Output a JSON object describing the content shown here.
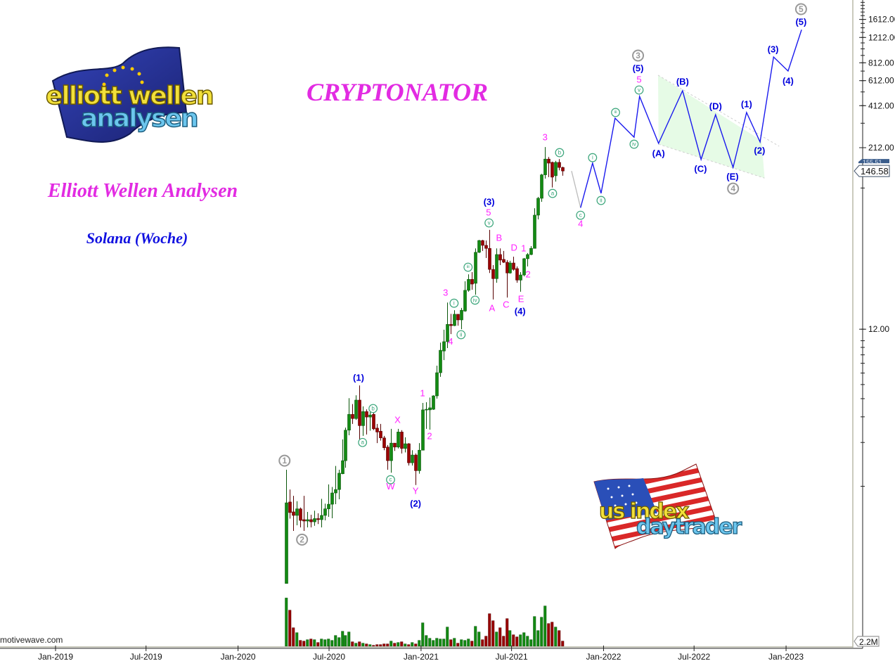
{
  "header": {
    "title": "CRYPTONATOR",
    "subtitle": "Elliott Wellen Analysen",
    "symbol": "Solana (Woche)",
    "watermark": "motivewave.com"
  },
  "logos": {
    "top_left": {
      "line1": "elliott wellen",
      "line2": "analysen"
    },
    "bottom_right": {
      "line1": "us index",
      "line2": "daytrader"
    }
  },
  "colors": {
    "up": "#138a13",
    "down": "#9a0000",
    "projection": "#1a1aee",
    "projection_start": "#bbbbbb",
    "magenta": "#ff22ff",
    "blue_label": "#0000dd",
    "green_circle": "#3aa57a",
    "gray_circle": "#999999",
    "triangle_fill": "#e6fbe6"
  },
  "chart_data": {
    "type": "candlestick",
    "interval": "weekly",
    "y_scale": "log",
    "grid": false,
    "y_ticks": [
      {
        "value": 1612,
        "label": "1612.00"
      },
      {
        "value": 1212,
        "label": "1212.00"
      },
      {
        "value": 812,
        "label": "812.00"
      },
      {
        "value": 612,
        "label": "612.00"
      },
      {
        "value": 412,
        "label": "412.00"
      },
      {
        "value": 212,
        "label": "212.00"
      },
      {
        "value": 12,
        "label": "12.00"
      }
    ],
    "x_ticks": [
      {
        "date": "2019-01-01",
        "label": "Jan-2019"
      },
      {
        "date": "2019-07-01",
        "label": "Jul-2019"
      },
      {
        "date": "2020-01-01",
        "label": "Jan-2020"
      },
      {
        "date": "2020-07-01",
        "label": "Jul-2020"
      },
      {
        "date": "2021-01-01",
        "label": "Jan-2021"
      },
      {
        "date": "2021-07-01",
        "label": "Jul-2021"
      },
      {
        "date": "2022-01-01",
        "label": "Jan-2022"
      },
      {
        "date": "2022-07-01",
        "label": "Jul-2022"
      },
      {
        "date": "2023-01-01",
        "label": "Jan-2023"
      }
    ],
    "last_price_label": "146.58",
    "last_price_hidden_label": "155.51",
    "volume_label": "2.2M",
    "volume_unit": "M",
    "candles_columns": [
      "date",
      "open",
      "high",
      "low",
      "close",
      "volume"
    ],
    "candles": [
      [
        "2020-04-06",
        0.215,
        1.3,
        0.215,
        0.77,
        20.6
      ],
      [
        "2020-04-13",
        0.78,
        0.95,
        0.6,
        0.66,
        15.4
      ],
      [
        "2020-04-20",
        0.667,
        0.86,
        0.494,
        0.631,
        7.9
      ],
      [
        "2020-04-27",
        0.631,
        0.79,
        0.54,
        0.7,
        5.8
      ],
      [
        "2020-05-04",
        0.7,
        0.715,
        0.522,
        0.583,
        2.5
      ],
      [
        "2020-05-11",
        0.59,
        0.86,
        0.494,
        0.577,
        2.2
      ],
      [
        "2020-05-18",
        0.577,
        0.667,
        0.522,
        0.59,
        2.8
      ],
      [
        "2020-05-25",
        0.59,
        0.638,
        0.522,
        0.57,
        3.1
      ],
      [
        "2020-06-01",
        0.57,
        0.68,
        0.535,
        0.6,
        2.8
      ],
      [
        "2020-06-08",
        0.6,
        0.652,
        0.55,
        0.59,
        1.6
      ],
      [
        "2020-06-15",
        0.59,
        0.82,
        0.522,
        0.631,
        3.1
      ],
      [
        "2020-06-22",
        0.631,
        0.76,
        0.583,
        0.7,
        2.8
      ],
      [
        "2020-06-29",
        0.7,
        1.03,
        0.617,
        0.753,
        3.1
      ],
      [
        "2020-07-06",
        0.753,
        0.99,
        0.603,
        0.9,
        2.5
      ],
      [
        "2020-07-13",
        0.9,
        1.38,
        0.753,
        0.95,
        4.6
      ],
      [
        "2020-07-20",
        0.95,
        1.3,
        0.814,
        1.23,
        3.7
      ],
      [
        "2020-07-27",
        1.22,
        2.1,
        1.21,
        1.5,
        6.4
      ],
      [
        "2020-08-03",
        1.5,
        2.53,
        1.34,
        2.43,
        4.6
      ],
      [
        "2020-08-10",
        2.43,
        4.03,
        2.24,
        3.12,
        6.1
      ],
      [
        "2020-08-17",
        3.12,
        3.67,
        2.68,
        2.92,
        1.9
      ],
      [
        "2020-08-24",
        2.92,
        4.22,
        2.86,
        3.91,
        1.3
      ],
      [
        "2020-08-31",
        3.91,
        4.93,
        2.06,
        2.61,
        1.9
      ],
      [
        "2020-09-07",
        2.61,
        3.54,
        2.22,
        3.26,
        1.3
      ],
      [
        "2020-09-14",
        3.26,
        3.38,
        2.27,
        2.99,
        1.0
      ],
      [
        "2020-09-21",
        2.99,
        3.23,
        2.41,
        3.09,
        0.7
      ],
      [
        "2020-09-28",
        3.12,
        3.46,
        2.43,
        2.48,
        0.4
      ],
      [
        "2020-10-05",
        2.51,
        2.68,
        1.98,
        2.36,
        0.7
      ],
      [
        "2020-10-12",
        2.39,
        2.68,
        2.06,
        2.15,
        0.7
      ],
      [
        "2020-10-19",
        2.15,
        2.22,
        1.77,
        1.84,
        1.0
      ],
      [
        "2020-10-26",
        1.86,
        1.92,
        1.3,
        1.5,
        1.0
      ],
      [
        "2020-11-02",
        1.5,
        2.48,
        1.24,
        1.98,
        2.2
      ],
      [
        "2020-11-09",
        1.98,
        1.98,
        1.75,
        1.86,
        1.3
      ],
      [
        "2020-11-16",
        1.86,
        2.48,
        1.82,
        2.36,
        1.6
      ],
      [
        "2020-11-23",
        2.36,
        2.43,
        1.68,
        1.82,
        1.9
      ],
      [
        "2020-11-30",
        1.82,
        2.17,
        1.71,
        1.96,
        1.0
      ],
      [
        "2020-12-07",
        1.96,
        1.98,
        1.39,
        1.45,
        0.7
      ],
      [
        "2020-12-14",
        1.45,
        1.77,
        1.39,
        1.64,
        1.6
      ],
      [
        "2020-12-21",
        1.64,
        1.68,
        1.02,
        1.28,
        1.0
      ],
      [
        "2020-12-28",
        1.28,
        1.98,
        1.22,
        1.77,
        2.5
      ],
      [
        "2021-01-04",
        1.77,
        3.74,
        1.77,
        3.35,
        10.0
      ],
      [
        "2021-01-11",
        3.35,
        3.78,
        2.48,
        3.38,
        4.6
      ],
      [
        "2021-01-18",
        3.35,
        4.07,
        2.45,
        3.46,
        3.4
      ],
      [
        "2021-01-25",
        3.38,
        4.22,
        3.35,
        4.18,
        2.5
      ],
      [
        "2021-02-01",
        4.18,
        6.74,
        4.0,
        6.03,
        3.4
      ],
      [
        "2021-02-08",
        6.03,
        9.7,
        5.65,
        8.6,
        3.1
      ],
      [
        "2021-02-15",
        8.5,
        11.9,
        7.36,
        9.85,
        3.1
      ],
      [
        "2021-02-22",
        9.85,
        18.3,
        8.9,
        12.95,
        8.2
      ],
      [
        "2021-03-01",
        12.95,
        15.3,
        11.1,
        12.7,
        2.8
      ],
      [
        "2021-03-08",
        12.7,
        16.2,
        12.6,
        15.2,
        3.4
      ],
      [
        "2021-03-15",
        15.2,
        15.2,
        12.7,
        13.9,
        1.3
      ],
      [
        "2021-03-22",
        13.9,
        16.8,
        12.0,
        16.2,
        2.8
      ],
      [
        "2021-03-29",
        16.0,
        25.6,
        15.8,
        22.2,
        2.5
      ],
      [
        "2021-04-05",
        22.2,
        28.6,
        21.7,
        26.4,
        3.1
      ],
      [
        "2021-04-12",
        26.4,
        29.6,
        22.4,
        24.5,
        2.2
      ],
      [
        "2021-04-19",
        24.8,
        43.1,
        20.7,
        40.5,
        8.5
      ],
      [
        "2021-04-26",
        40.5,
        49.3,
        40.0,
        48.8,
        6.1
      ],
      [
        "2021-05-03",
        48.8,
        49.3,
        41.4,
        45.2,
        2.8
      ],
      [
        "2021-05-10",
        45.2,
        48.8,
        37.0,
        43.1,
        4.3
      ],
      [
        "2021-05-17",
        43.1,
        57.8,
        29.2,
        30.9,
        13.9
      ],
      [
        "2021-05-24",
        30.9,
        33.1,
        19.2,
        26.7,
        10.9
      ],
      [
        "2021-05-31",
        26.7,
        43.1,
        25.0,
        39.1,
        6.1
      ],
      [
        "2021-06-07",
        39.1,
        43.1,
        33.1,
        35.8,
        7.9
      ],
      [
        "2021-06-14",
        36.2,
        41.4,
        34.2,
        34.6,
        4.3
      ],
      [
        "2021-06-21",
        34.6,
        35.8,
        19.8,
        29.2,
        11.8
      ],
      [
        "2021-06-28",
        29.2,
        35.4,
        28.9,
        34.2,
        6.7
      ],
      [
        "2021-07-05",
        34.2,
        37.8,
        30.3,
        30.9,
        4.9
      ],
      [
        "2021-07-12",
        31.3,
        32.4,
        25.0,
        26.1,
        4.0
      ],
      [
        "2021-07-19",
        26.1,
        29.6,
        21.7,
        28.3,
        4.9
      ],
      [
        "2021-07-26",
        28.3,
        37.0,
        27.7,
        36.6,
        5.8
      ],
      [
        "2021-08-02",
        36.6,
        40.0,
        32.4,
        39.1,
        4.3
      ],
      [
        "2021-08-09",
        39.1,
        44.7,
        38.7,
        43.1,
        2.8
      ],
      [
        "2021-08-16",
        43.1,
        81.3,
        43.1,
        72.9,
        12.7
      ],
      [
        "2021-08-23",
        72.9,
        97.3,
        68.2,
        95.2,
        6.7
      ],
      [
        "2021-08-30",
        95.2,
        140,
        90,
        138,
        12.4
      ],
      [
        "2021-09-06",
        138,
        214,
        130,
        177,
        17.2
      ],
      [
        "2021-09-13",
        177,
        183,
        133,
        166,
        9.7
      ],
      [
        "2021-09-20",
        168,
        170,
        113,
        133,
        10.3
      ],
      [
        "2021-09-27",
        136,
        172,
        124,
        168,
        8.2
      ],
      [
        "2021-10-04",
        168,
        177,
        148,
        155,
        6.7
      ],
      [
        "2021-10-11",
        155,
        157,
        136,
        146.58,
        2.2
      ]
    ],
    "projection": [
      [
        "2021-10-29",
        146.6
      ],
      [
        "2021-11-16",
        82
      ],
      [
        "2021-12-10",
        166
      ],
      [
        "2021-12-27",
        103
      ],
      [
        "2022-01-24",
        338
      ],
      [
        "2022-03-03",
        250
      ],
      [
        "2022-03-14",
        477
      ],
      [
        "2022-04-21",
        227
      ],
      [
        "2022-06-08",
        522
      ],
      [
        "2022-07-15",
        176
      ],
      [
        "2022-08-13",
        357
      ],
      [
        "2022-09-17",
        155
      ],
      [
        "2022-10-14",
        370
      ],
      [
        "2022-11-10",
        232
      ],
      [
        "2022-12-07",
        890
      ],
      [
        "2023-01-05",
        713
      ],
      [
        "2023-02-01",
        1370
      ]
    ],
    "triangle": {
      "upper": [
        [
          "2022-04-20",
          667
        ],
        [
          "2022-11-13",
          237
        ]
      ],
      "lower": [
        [
          "2022-04-21",
          224
        ],
        [
          "2022-11-19",
          131
        ]
      ]
    },
    "labels": [
      {
        "text": "1",
        "date": "2020-04-03",
        "price": 1.5,
        "style": "circle-gray"
      },
      {
        "text": "2",
        "date": "2020-05-08",
        "price": 0.43,
        "style": "circle-gray"
      },
      {
        "text": "3",
        "date": "2022-03-11",
        "price": 910,
        "style": "circle-gray"
      },
      {
        "text": "4",
        "date": "2022-09-17",
        "price": 111,
        "style": "circle-gray"
      },
      {
        "text": "5",
        "date": "2023-01-31",
        "price": 1897,
        "style": "circle-gray"
      },
      {
        "text": "(1)",
        "date": "2020-08-29",
        "price": 5.58,
        "style": "blue"
      },
      {
        "text": "(2)",
        "date": "2020-12-21",
        "price": 0.76,
        "style": "blue"
      },
      {
        "text": "(3)",
        "date": "2021-05-17",
        "price": 90,
        "style": "blue"
      },
      {
        "text": "(4)",
        "date": "2021-07-18",
        "price": 16.0,
        "style": "blue"
      },
      {
        "text": "(5)",
        "date": "2022-03-11",
        "price": 745,
        "style": "blue"
      },
      {
        "text": "(A)",
        "date": "2022-04-21",
        "price": 194,
        "style": "blue"
      },
      {
        "text": "(B)",
        "date": "2022-06-08",
        "price": 603,
        "style": "blue"
      },
      {
        "text": "(C)",
        "date": "2022-07-14",
        "price": 151.9,
        "style": "blue"
      },
      {
        "text": "(D)",
        "date": "2022-08-13",
        "price": 409,
        "style": "blue"
      },
      {
        "text": "(E)",
        "date": "2022-09-16",
        "price": 134,
        "style": "blue"
      },
      {
        "text": "(1)",
        "date": "2022-10-14",
        "price": 423,
        "style": "blue"
      },
      {
        "text": "(2)",
        "date": "2022-11-09",
        "price": 203,
        "style": "blue"
      },
      {
        "text": "(3)",
        "date": "2022-12-06",
        "price": 1006,
        "style": "blue"
      },
      {
        "text": "(4)",
        "date": "2023-01-05",
        "price": 610,
        "style": "blue"
      },
      {
        "text": "(5)",
        "date": "2023-01-31",
        "price": 1553,
        "style": "blue"
      },
      {
        "text": "X",
        "date": "2020-11-15",
        "price": 2.86,
        "style": "magenta"
      },
      {
        "text": "W",
        "date": "2020-11-01",
        "price": 1.0,
        "style": "magenta"
      },
      {
        "text": "Y",
        "date": "2020-12-21",
        "price": 0.93,
        "style": "magenta"
      },
      {
        "text": "1",
        "date": "2021-01-04",
        "price": 4.37,
        "style": "magenta"
      },
      {
        "text": "2",
        "date": "2021-01-18",
        "price": 2.22,
        "style": "magenta"
      },
      {
        "text": "3",
        "date": "2021-02-19",
        "price": 21.4,
        "style": "magenta"
      },
      {
        "text": "4",
        "date": "2021-03-01",
        "price": 9.9,
        "style": "magenta"
      },
      {
        "text": "5",
        "date": "2021-05-16",
        "price": 76.2,
        "style": "magenta"
      },
      {
        "text": "A",
        "date": "2021-05-23",
        "price": 16.8,
        "style": "magenta"
      },
      {
        "text": "B",
        "date": "2021-06-06",
        "price": 51,
        "style": "magenta"
      },
      {
        "text": "C",
        "date": "2021-06-20",
        "price": 17.7,
        "style": "magenta"
      },
      {
        "text": "D",
        "date": "2021-07-06",
        "price": 43.7,
        "style": "magenta"
      },
      {
        "text": "E",
        "date": "2021-07-20",
        "price": 19.4,
        "style": "magenta"
      },
      {
        "text": "1",
        "date": "2021-07-25",
        "price": 43.2,
        "style": "magenta"
      },
      {
        "text": "2",
        "date": "2021-08-03",
        "price": 28.6,
        "style": "magenta"
      },
      {
        "text": "3",
        "date": "2021-09-06",
        "price": 250.6,
        "style": "magenta"
      },
      {
        "text": "4",
        "date": "2021-11-16",
        "price": 63.8,
        "style": "magenta"
      },
      {
        "text": "5",
        "date": "2022-03-13",
        "price": 624,
        "style": "magenta"
      },
      {
        "text": "a",
        "date": "2020-09-06",
        "price": 2.0,
        "style": "circle-green"
      },
      {
        "text": "b",
        "date": "2020-09-27",
        "price": 3.42,
        "style": "circle-green"
      },
      {
        "text": "c",
        "date": "2020-11-01",
        "price": 1.11,
        "style": "circle-green"
      },
      {
        "text": "i",
        "date": "2021-03-08",
        "price": 18.1,
        "style": "circle-green"
      },
      {
        "text": "ii",
        "date": "2021-03-22",
        "price": 11.0,
        "style": "circle-green"
      },
      {
        "text": "iii",
        "date": "2021-04-05",
        "price": 32.0,
        "style": "circle-green"
      },
      {
        "text": "iv",
        "date": "2021-04-19",
        "price": 19.0,
        "style": "circle-green"
      },
      {
        "text": "v",
        "date": "2021-05-17",
        "price": 64.5,
        "style": "circle-green"
      },
      {
        "text": "a",
        "date": "2021-09-21",
        "price": 102.8,
        "style": "circle-green"
      },
      {
        "text": "b",
        "date": "2021-10-05",
        "price": 196,
        "style": "circle-green"
      },
      {
        "text": "c",
        "date": "2021-11-16",
        "price": 72.8,
        "style": "circle-green"
      },
      {
        "text": "i",
        "date": "2021-12-10",
        "price": 181,
        "style": "circle-green"
      },
      {
        "text": "ii",
        "date": "2021-12-27",
        "price": 92,
        "style": "circle-green"
      },
      {
        "text": "iii",
        "date": "2022-01-25",
        "price": 370,
        "style": "circle-green"
      },
      {
        "text": "iv",
        "date": "2022-03-03",
        "price": 224,
        "style": "circle-green"
      },
      {
        "text": "v",
        "date": "2022-03-13",
        "price": 528,
        "style": "circle-green"
      }
    ]
  }
}
